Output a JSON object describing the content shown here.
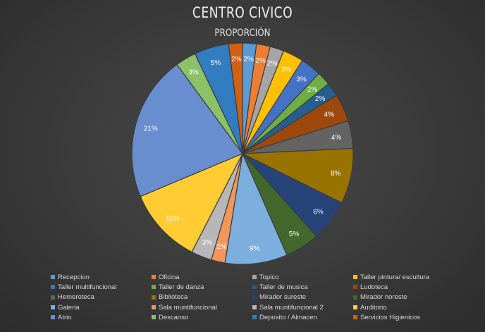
{
  "chart_data": {
    "type": "pie",
    "title": "CENTRO CIVICO",
    "subtitle": "PROPORCIÓN",
    "legend_position": "bottom",
    "slices": [
      {
        "name": "Recepcion",
        "value": 2,
        "label": "2%",
        "color": "#5B9BD5"
      },
      {
        "name": "Oficina",
        "value": 2,
        "label": "2%",
        "color": "#ED7D31"
      },
      {
        "name": "Topico",
        "value": 2,
        "label": "2%",
        "color": "#A5A5A5"
      },
      {
        "name": "Taller pintura/ escultura",
        "value": 3,
        "label": "3%",
        "color": "#FFC000"
      },
      {
        "name": "Taller multifuncional",
        "value": 3,
        "label": "3%",
        "color": "#4472C4"
      },
      {
        "name": "Taller de danza",
        "value": 2,
        "label": "2%",
        "color": "#70AD47"
      },
      {
        "name": "Taller de musica",
        "value": 2,
        "label": "2%",
        "color": "#255E91"
      },
      {
        "name": "Ludoteca",
        "value": 4,
        "label": "4%",
        "color": "#9E480E"
      },
      {
        "name": "Hemeroteca",
        "value": 4,
        "label": "4%",
        "color": "#636363"
      },
      {
        "name": "Biblioteca",
        "value": 8,
        "label": "8%",
        "color": "#997300"
      },
      {
        "name": "Mirador sureste",
        "value": 6,
        "label": "6%",
        "color": "#264478"
      },
      {
        "name": "Mirador noreste",
        "value": 5,
        "label": "5%",
        "color": "#43682B"
      },
      {
        "name": "Galeria",
        "value": 9,
        "label": "9%",
        "color": "#7CAFDD"
      },
      {
        "name": "Sala muntifuncional",
        "value": 2,
        "label": "2%",
        "color": "#F1975A"
      },
      {
        "name": "Sala muntifuncional 2",
        "value": 3,
        "label": "3%",
        "color": "#B7B7B7"
      },
      {
        "name": "Auditorio",
        "value": 11,
        "label": "11%",
        "color": "#FFCD33"
      },
      {
        "name": "Atrio",
        "value": 21,
        "label": "21%",
        "color": "#698ED0"
      },
      {
        "name": "Descanso",
        "value": 3,
        "label": "3%",
        "color": "#8CC168"
      },
      {
        "name": "Deposito / Almacen",
        "value": 5,
        "label": "5%",
        "color": "#327DC2"
      },
      {
        "name": "Servicios Higienicos",
        "value": 2,
        "label": "2%",
        "color": "#D26012"
      }
    ]
  }
}
